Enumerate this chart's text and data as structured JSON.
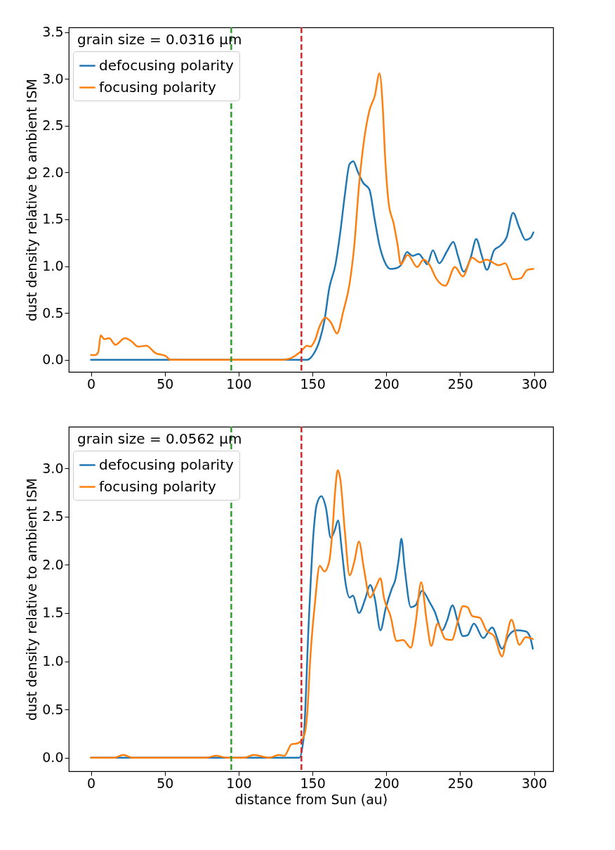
{
  "chart_data": [
    {
      "type": "line",
      "annotations": [
        "grain size = 0.0316 μm"
      ],
      "ylabel": "dust density relative to ambient ISM",
      "xlim": [
        -15,
        313
      ],
      "xticks": [
        0,
        50,
        100,
        150,
        200,
        250,
        300
      ],
      "ylim": [
        -0.13,
        3.55
      ],
      "yticks": [
        {
          "value": 0,
          "label": "0.0"
        },
        {
          "value": 0.5,
          "label": "0.5"
        },
        {
          "value": 1,
          "label": "1.0"
        },
        {
          "value": 1.5,
          "label": "1.5"
        },
        {
          "value": 2,
          "label": "2.0"
        },
        {
          "value": 2.5,
          "label": "2.5"
        },
        {
          "value": 3,
          "label": "3.0"
        },
        {
          "value": 3.5,
          "label": "3.5"
        }
      ],
      "legend": "top left",
      "grid": false,
      "ref_lines": [
        {
          "axis": "x",
          "value": 95,
          "color": "#2ca02c",
          "line_style": "dashed"
        },
        {
          "axis": "x",
          "value": 142.5,
          "color": "#d62728",
          "line_style": "dashed"
        }
      ],
      "series": [
        {
          "name": "defocusing polarity",
          "color": "#1f77b4",
          "x": [
            0,
            146.4,
            150.7,
            154.9,
            158.1,
            161.3,
            165.6,
            168.8,
            171.9,
            175.1,
            177.7,
            180.4,
            184.3,
            188.5,
            192.2,
            195.4,
            198.5,
            202.8,
            207,
            209.8,
            214,
            217.7,
            221.9,
            225.2,
            227.7,
            231.5,
            235.8,
            241.1,
            245.4,
            248.5,
            252.4,
            257.1,
            260.9,
            264.5,
            268.1,
            273,
            277.3,
            281.5,
            285.8,
            290.1,
            294.3,
            297.5,
            299.6
          ],
          "values": [
            0,
            0,
            0.06,
            0.21,
            0.42,
            0.76,
            1.02,
            1.36,
            1.76,
            2.09,
            2.12,
            2.02,
            1.89,
            1.82,
            1.49,
            1.22,
            1.06,
            0.97,
            0.98,
            1.01,
            1.15,
            1.11,
            1.13,
            1.07,
            1.02,
            1.17,
            1.03,
            1.16,
            1.26,
            1.11,
            0.94,
            1.09,
            1.29,
            1.12,
            0.96,
            1.17,
            1.22,
            1.31,
            1.57,
            1.41,
            1.28,
            1.3,
            1.36
          ]
        },
        {
          "name": "focusing polarity",
          "color": "#ff7f0e",
          "x": [
            0,
            2.8,
            4.9,
            6.6,
            9.1,
            12.3,
            16.6,
            23,
            27.2,
            31.9,
            37.5,
            43.8,
            50.6,
            53.8,
            130.4,
            135.8,
            142.2,
            146.4,
            148.5,
            151.7,
            154.9,
            158.7,
            162.4,
            166.6,
            170.9,
            175.1,
            178.3,
            181.5,
            184.7,
            188.5,
            192.2,
            195.4,
            197.5,
            199.2,
            201.7,
            204.9,
            207.7,
            209.8,
            214.5,
            220.9,
            225.2,
            229.4,
            233.7,
            240,
            246.4,
            251.8,
            258.1,
            263.4,
            267.7,
            276.2,
            280.5,
            285.8,
            291.1,
            295.4,
            299.6
          ],
          "values": [
            0.05,
            0.05,
            0.08,
            0.26,
            0.22,
            0.23,
            0.16,
            0.23,
            0.2,
            0.14,
            0.15,
            0.07,
            0.04,
            0,
            0,
            0.02,
            0.09,
            0.15,
            0.14,
            0.21,
            0.36,
            0.45,
            0.4,
            0.28,
            0.52,
            0.81,
            1.22,
            1.86,
            2.32,
            2.66,
            2.82,
            3.06,
            2.72,
            2.16,
            1.66,
            1.46,
            1.22,
            1.02,
            1.12,
            0.99,
            1.07,
            1.01,
            0.87,
            0.79,
            0.99,
            0.89,
            1.09,
            1.04,
            1.07,
            1.01,
            1.03,
            0.86,
            0.87,
            0.96,
            0.97
          ]
        }
      ]
    },
    {
      "type": "line",
      "annotations": [
        "grain size = 0.0562 μm"
      ],
      "xlabel": "distance from Sun (au)",
      "ylabel": "dust density relative to ambient ISM",
      "xlim": [
        -15,
        313
      ],
      "xticks": [
        0,
        50,
        100,
        150,
        200,
        250,
        300
      ],
      "ylim": [
        -0.14,
        3.43
      ],
      "yticks": [
        {
          "value": 0,
          "label": "0.0"
        },
        {
          "value": 0.5,
          "label": "0.5"
        },
        {
          "value": 1,
          "label": "1.0"
        },
        {
          "value": 1.5,
          "label": "1.5"
        },
        {
          "value": 2,
          "label": "2.0"
        },
        {
          "value": 2.5,
          "label": "2.5"
        },
        {
          "value": 3,
          "label": "3.0"
        }
      ],
      "legend": "top left",
      "grid": false,
      "ref_lines": [
        {
          "axis": "x",
          "value": 95,
          "color": "#2ca02c",
          "line_style": "dashed"
        },
        {
          "axis": "x",
          "value": 142.5,
          "color": "#d62728",
          "line_style": "dashed"
        }
      ],
      "series": [
        {
          "name": "defocusing polarity",
          "color": "#1f77b4",
          "x": [
            0,
            141,
            144.1,
            147.3,
            150.7,
            152.8,
            156,
            159.1,
            162.4,
            165.1,
            167.3,
            169.8,
            172.4,
            175.1,
            177.3,
            181.5,
            185.8,
            189,
            192.2,
            196,
            199.6,
            203.9,
            206,
            208.5,
            210.2,
            212.4,
            216.6,
            219.8,
            224.1,
            229.4,
            232.6,
            237.9,
            241.1,
            244.8,
            248.2,
            251.8,
            255,
            259.3,
            265.6,
            271.6,
            278.4,
            282.6,
            287.9,
            294.3,
            297.1,
            299.2
          ],
          "values": [
            0,
            0,
            0.22,
            1.35,
            2.33,
            2.62,
            2.71,
            2.59,
            2.28,
            2.36,
            2.46,
            2.16,
            1.81,
            1.66,
            1.68,
            1.5,
            1.65,
            1.79,
            1.65,
            1.32,
            1.55,
            1.76,
            1.84,
            2.07,
            2.27,
            1.97,
            1.56,
            1.58,
            1.73,
            1.61,
            1.52,
            1.32,
            1.42,
            1.58,
            1.42,
            1.26,
            1.27,
            1.39,
            1.24,
            1.35,
            1.13,
            1.26,
            1.32,
            1.31,
            1.26,
            1.13
          ]
        },
        {
          "name": "focusing polarity",
          "color": "#ff7f0e",
          "x": [
            0,
            16,
            21.9,
            28,
            78,
            84.7,
            92,
            104,
            110.2,
            120.9,
            127.3,
            131,
            135.8,
            140,
            144.1,
            146.4,
            148.5,
            151.7,
            154.9,
            158.1,
            161.3,
            163.4,
            165.6,
            167.1,
            168.8,
            172,
            175.1,
            178.3,
            181.5,
            184.7,
            189,
            193.2,
            196,
            198.5,
            202.8,
            207,
            211.3,
            216.6,
            219.8,
            223.6,
            227.3,
            230.4,
            234.7,
            240,
            244.3,
            248.5,
            251.8,
            255,
            258.1,
            263.4,
            267.7,
            273,
            278.4,
            281.5,
            284.7,
            290.1,
            294.3,
            299.2
          ],
          "values": [
            0,
            0,
            0.03,
            0,
            0,
            0.02,
            0,
            0,
            0.03,
            0,
            0.03,
            0.02,
            0.14,
            0.15,
            0.22,
            0.45,
            1.03,
            1.61,
            1.99,
            1.93,
            2.03,
            2.33,
            2.81,
            2.98,
            2.89,
            2.33,
            1.89,
            2.03,
            2.24,
            1.97,
            1.66,
            1.78,
            1.86,
            1.65,
            1.47,
            1.21,
            1.22,
            1.14,
            1.39,
            1.82,
            1.42,
            1.16,
            1.39,
            1.23,
            1.22,
            1.42,
            1.57,
            1.56,
            1.47,
            1.45,
            1.32,
            1.26,
            1.05,
            1.26,
            1.43,
            1.17,
            1.25,
            1.23
          ]
        }
      ]
    }
  ]
}
